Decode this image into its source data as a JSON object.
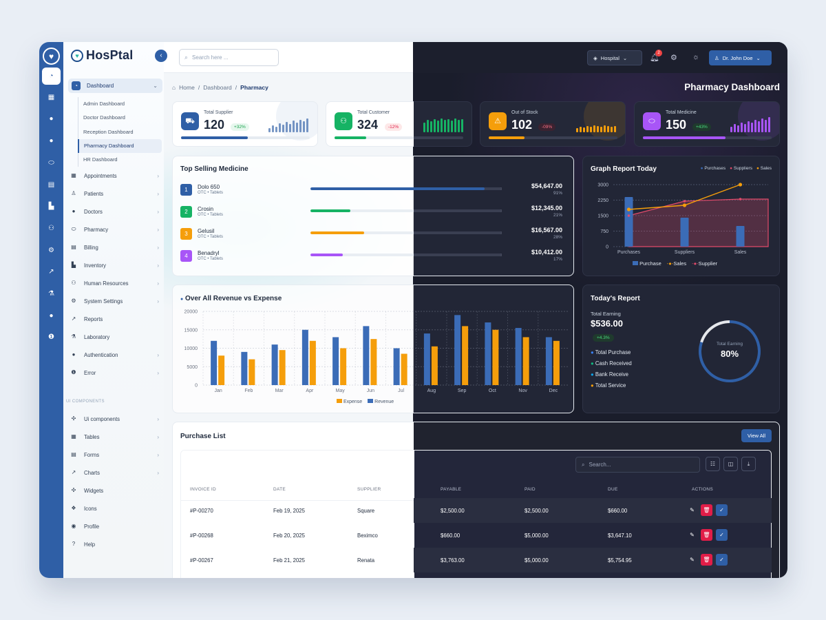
{
  "brand": {
    "name": "HosPtal"
  },
  "search": {
    "placeholder": "Search here ..."
  },
  "topbar": {
    "hospital": "Hospital",
    "notifications": "2",
    "user": "Dr. John Doe"
  },
  "breadcrumb": {
    "home": "Home",
    "dashboard": "Dashboard",
    "current": "Pharmacy"
  },
  "page_title": "Pharmacy Dashboard",
  "sidebar": {
    "dashboard": "Dashboard",
    "sub": [
      "Admin Dashboard",
      "Doctor Dashboard",
      "Reception Dashboard",
      "Pharmacy Dashboard",
      "HR Dashboard"
    ],
    "items": [
      "Appointments",
      "Patients",
      "Doctors",
      "Pharmacy",
      "Billing",
      "Inventory",
      "Human Resources",
      "System Settings",
      "Reports",
      "Laboratory",
      "Authentication",
      "Error"
    ],
    "section": "UI COMPONENTS",
    "ui_items": [
      "Ui components",
      "Tables",
      "Forms",
      "Charts",
      "Widgets",
      "Icons",
      "Profile",
      "Help"
    ]
  },
  "stats": [
    {
      "label": "Total Supplier",
      "value": "120",
      "change": "+32%",
      "dir": "up",
      "color": "#2f5fa6",
      "progress": 0.52
    },
    {
      "label": "Total Customer",
      "value": "324",
      "change": "-12%",
      "dir": "down",
      "color": "#16b364",
      "progress": 0.4
    },
    {
      "label": "Out of Stock",
      "value": "102",
      "change": "-09%",
      "dir": "down",
      "color": "#f59e0b",
      "progress": 0.28
    },
    {
      "label": "Total Medicine",
      "value": "150",
      "change": "+43%",
      "dir": "up",
      "color": "#a855f7",
      "progress": 0.64
    }
  ],
  "top_selling": {
    "title": "Top Selling Medicine",
    "items": [
      {
        "rank": "1",
        "name": "Dolo 650",
        "sub": "OTC • Tablets",
        "amount": "$54,647.00",
        "pct": "91%",
        "fill": 0.91,
        "color": "#2f5fa6"
      },
      {
        "rank": "2",
        "name": "Crosin",
        "sub": "OTC • Tablets",
        "amount": "$12,345.00",
        "pct": "21%",
        "fill": 0.21,
        "color": "#16b364"
      },
      {
        "rank": "3",
        "name": "Gelusil",
        "sub": "OTC • Tablets",
        "amount": "$16,567.00",
        "pct": "28%",
        "fill": 0.28,
        "color": "#f59e0b"
      },
      {
        "rank": "4",
        "name": "Benadryl",
        "sub": "OTC • Tablets",
        "amount": "$10,412.00",
        "pct": "17%",
        "fill": 0.17,
        "color": "#a855f7"
      }
    ]
  },
  "graph_report": {
    "title": "Graph Report Today",
    "legend_top": [
      "Purchases",
      "Suppliers",
      "Sales"
    ],
    "legend_bottom": [
      "Purchase",
      "Sales",
      "Supplier"
    ]
  },
  "revenue": {
    "title": "Over All Revenue vs Expense"
  },
  "today_report": {
    "title": "Today's Report",
    "earning_label": "Total Earning",
    "earning_value": "$536.00",
    "change": "+4.3%",
    "items": [
      {
        "label": "Total Purchase",
        "color": "#3b82f6"
      },
      {
        "label": "Cash Received",
        "color": "#10b981"
      },
      {
        "label": "Bank Receive",
        "color": "#0ea5e9"
      },
      {
        "label": "Total Service",
        "color": "#f59e0b"
      }
    ],
    "donut_label": "Total Earning",
    "donut_value": "80%",
    "donut_fraction": 0.8
  },
  "purchase_list": {
    "title": "Purchase List",
    "view_all": "View All",
    "search_placeholder": "Search...",
    "columns": [
      "INVOICE ID",
      "DATE",
      "SUPPLIER",
      "PAYABLE",
      "PAID",
      "DUE",
      "ACTIONS"
    ],
    "rows": [
      [
        "#P-00270",
        "Feb 19, 2025",
        "Square",
        "$2,500.00",
        "$2,500.00",
        "$660.00"
      ],
      [
        "#P-00268",
        "Feb 20, 2025",
        "Beximco",
        "$660.00",
        "$5,000.00",
        "$3,647.10"
      ],
      [
        "#P-00267",
        "Feb 21, 2025",
        "Renata",
        "$3,763.00",
        "$5,000.00",
        "$5,754.95"
      ]
    ]
  },
  "chart_data": [
    {
      "type": "bar",
      "title": "Over All Revenue vs Expense",
      "categories": [
        "Jan",
        "Feb",
        "Mar",
        "Apr",
        "May",
        "Jun",
        "Jul",
        "Aug",
        "Sep",
        "Oct",
        "Nov",
        "Dec"
      ],
      "series": [
        {
          "name": "Revenue",
          "color": "#3b6cb7",
          "values": [
            12000,
            9000,
            11000,
            15000,
            13000,
            16000,
            10000,
            14000,
            19000,
            17000,
            15500,
            13000
          ]
        },
        {
          "name": "Expense",
          "color": "#f59e0b",
          "values": [
            8000,
            7000,
            9500,
            12000,
            10000,
            12500,
            8500,
            10500,
            16000,
            15000,
            13000,
            12000
          ]
        }
      ],
      "ylim": [
        0,
        20000
      ],
      "yticks": [
        0,
        5000,
        10000,
        15000,
        20000
      ],
      "legend": "bottom"
    },
    {
      "type": "bar",
      "title": "Graph Report Today",
      "categories": [
        "Purchases",
        "Suppliers",
        "Sales"
      ],
      "series": [
        {
          "name": "Purchase",
          "type": "bar",
          "color": "#3b6cb7",
          "values": [
            2400,
            1400,
            1000
          ]
        },
        {
          "name": "Sales",
          "type": "line",
          "color": "#f59e0b",
          "values": [
            1800,
            2000,
            3000
          ]
        },
        {
          "name": "Supplier",
          "type": "area",
          "color": "#e24a6a",
          "values": [
            1500,
            2200,
            2300
          ]
        }
      ],
      "ylim": [
        0,
        3000
      ],
      "yticks": [
        0,
        750,
        1500,
        2250,
        3000
      ],
      "legend": "top-right"
    }
  ]
}
